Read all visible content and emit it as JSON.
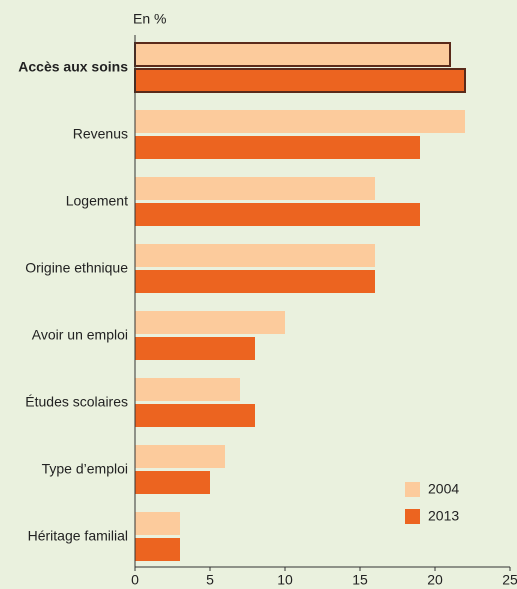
{
  "chart_data": {
    "type": "barh",
    "axis_label": "En %",
    "categories": [
      "Accès aux soins",
      "Revenus",
      "Logement",
      "Origine ethnique",
      "Avoir un emploi",
      "Études scolaires",
      "Type d’emploi",
      "Héritage familial"
    ],
    "series": [
      {
        "name": "2004",
        "color": "#fccb9c",
        "values": [
          21,
          22,
          16,
          16,
          10,
          7,
          6,
          3
        ]
      },
      {
        "name": "2013",
        "color": "#ec6420",
        "values": [
          22,
          19,
          19,
          16,
          8,
          8,
          5,
          3
        ]
      }
    ],
    "xlim": [
      0,
      25
    ],
    "xticks": [
      0,
      5,
      10,
      15,
      20,
      25
    ],
    "highlight": 0,
    "highlight_color": "#5a2a1a",
    "legend": "lower right"
  }
}
